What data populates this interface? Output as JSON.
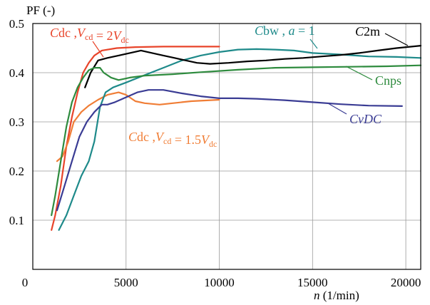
{
  "chart_data": {
    "type": "line",
    "ylabel": "PF (-)",
    "xlabel": {
      "var": "n",
      "unit": " (1/min)"
    },
    "xlim": [
      0,
      20800
    ],
    "ylim": [
      0,
      0.5
    ],
    "xticks": [
      0,
      5000,
      10000,
      15000,
      20000
    ],
    "xtick_labels": [
      "0",
      "5000",
      "10000",
      "15000",
      "20000"
    ],
    "yticks": [
      0.1,
      0.2,
      0.3,
      0.4,
      0.5
    ],
    "ytick_labels": [
      "0.1",
      "0.2",
      "0.3",
      "0.4",
      "0.5"
    ],
    "grid": true,
    "series": [
      {
        "key": "cdc2",
        "color": "#e8442a",
        "points": [
          [
            1000,
            0.08
          ],
          [
            1200,
            0.11
          ],
          [
            1500,
            0.17
          ],
          [
            1800,
            0.25
          ],
          [
            2100,
            0.31
          ],
          [
            2400,
            0.36
          ],
          [
            2700,
            0.4
          ],
          [
            3000,
            0.42
          ],
          [
            3300,
            0.435
          ],
          [
            3700,
            0.445
          ],
          [
            4500,
            0.45
          ],
          [
            5500,
            0.452
          ],
          [
            7000,
            0.453
          ],
          [
            8500,
            0.453
          ],
          [
            10000,
            0.453
          ]
        ]
      },
      {
        "key": "cdc15",
        "color": "#f07d35",
        "points": [
          [
            1300,
            0.22
          ],
          [
            1600,
            0.23
          ],
          [
            1900,
            0.26
          ],
          [
            2200,
            0.3
          ],
          [
            2600,
            0.32
          ],
          [
            3000,
            0.333
          ],
          [
            3500,
            0.345
          ],
          [
            4000,
            0.355
          ],
          [
            4600,
            0.36
          ],
          [
            5000,
            0.355
          ],
          [
            5500,
            0.342
          ],
          [
            6000,
            0.338
          ],
          [
            6800,
            0.335
          ],
          [
            7500,
            0.338
          ],
          [
            8500,
            0.342
          ],
          [
            10000,
            0.345
          ]
        ]
      },
      {
        "key": "cbw",
        "color": "#1e8a8a",
        "points": [
          [
            1400,
            0.08
          ],
          [
            1800,
            0.11
          ],
          [
            2200,
            0.15
          ],
          [
            2600,
            0.19
          ],
          [
            3000,
            0.22
          ],
          [
            3300,
            0.26
          ],
          [
            3600,
            0.33
          ],
          [
            3900,
            0.36
          ],
          [
            4300,
            0.37
          ],
          [
            5000,
            0.38
          ],
          [
            6000,
            0.395
          ],
          [
            7000,
            0.41
          ],
          [
            8000,
            0.425
          ],
          [
            9000,
            0.435
          ],
          [
            10000,
            0.442
          ],
          [
            11000,
            0.447
          ],
          [
            12000,
            0.448
          ],
          [
            13000,
            0.447
          ],
          [
            14000,
            0.445
          ],
          [
            15000,
            0.44
          ],
          [
            16500,
            0.437
          ],
          [
            18000,
            0.433
          ],
          [
            19500,
            0.432
          ],
          [
            20800,
            0.43
          ]
        ]
      },
      {
        "key": "c2m",
        "color": "#000000",
        "points": [
          [
            2800,
            0.37
          ],
          [
            3100,
            0.4
          ],
          [
            3500,
            0.425
          ],
          [
            4000,
            0.43
          ],
          [
            4600,
            0.435
          ],
          [
            5200,
            0.44
          ],
          [
            5800,
            0.445
          ],
          [
            6400,
            0.44
          ],
          [
            7000,
            0.435
          ],
          [
            7600,
            0.43
          ],
          [
            8200,
            0.425
          ],
          [
            8800,
            0.42
          ],
          [
            9500,
            0.418
          ],
          [
            10500,
            0.42
          ],
          [
            11500,
            0.423
          ],
          [
            12500,
            0.425
          ],
          [
            13500,
            0.428
          ],
          [
            14500,
            0.43
          ],
          [
            15500,
            0.433
          ],
          [
            16500,
            0.436
          ],
          [
            17500,
            0.44
          ],
          [
            18500,
            0.445
          ],
          [
            19500,
            0.45
          ],
          [
            20800,
            0.455
          ]
        ]
      },
      {
        "key": "cnps",
        "color": "#2e8b3e",
        "points": [
          [
            1000,
            0.11
          ],
          [
            1200,
            0.15
          ],
          [
            1500,
            0.22
          ],
          [
            1800,
            0.29
          ],
          [
            2100,
            0.34
          ],
          [
            2400,
            0.37
          ],
          [
            2700,
            0.39
          ],
          [
            3000,
            0.405
          ],
          [
            3300,
            0.41
          ],
          [
            3600,
            0.41
          ],
          [
            3800,
            0.4
          ],
          [
            4200,
            0.39
          ],
          [
            4600,
            0.385
          ],
          [
            5200,
            0.39
          ],
          [
            6000,
            0.394
          ],
          [
            7500,
            0.397
          ],
          [
            9000,
            0.401
          ],
          [
            11000,
            0.406
          ],
          [
            13000,
            0.41
          ],
          [
            15000,
            0.411
          ],
          [
            17000,
            0.412
          ],
          [
            19000,
            0.413
          ],
          [
            20800,
            0.415
          ]
        ]
      },
      {
        "key": "cvdc",
        "color": "#3a3c94",
        "points": [
          [
            1300,
            0.12
          ],
          [
            1700,
            0.17
          ],
          [
            2100,
            0.22
          ],
          [
            2500,
            0.27
          ],
          [
            2900,
            0.3
          ],
          [
            3300,
            0.32
          ],
          [
            3700,
            0.335
          ],
          [
            4000,
            0.335
          ],
          [
            4400,
            0.34
          ],
          [
            5000,
            0.35
          ],
          [
            5600,
            0.36
          ],
          [
            6200,
            0.365
          ],
          [
            7000,
            0.365
          ],
          [
            8000,
            0.358
          ],
          [
            9000,
            0.352
          ],
          [
            10000,
            0.348
          ],
          [
            11000,
            0.348
          ],
          [
            12000,
            0.347
          ],
          [
            13500,
            0.344
          ],
          [
            15000,
            0.34
          ],
          [
            16500,
            0.336
          ],
          [
            18000,
            0.333
          ],
          [
            19800,
            0.332
          ]
        ]
      }
    ],
    "annotations": [
      {
        "key": "cdc2",
        "parts": [
          {
            "t": "C",
            "s": "it"
          },
          {
            "t": "dc ,",
            "s": ""
          },
          {
            "t": "V",
            "s": "it"
          },
          {
            "t": "cd",
            "s": "sub"
          },
          {
            "t": " = 2",
            "s": ""
          },
          {
            "t": "V",
            "s": "it"
          },
          {
            "t": "dc",
            "s": "sub"
          }
        ]
      },
      {
        "key": "cdc15",
        "parts": [
          {
            "t": "C",
            "s": "it"
          },
          {
            "t": "dc ,",
            "s": ""
          },
          {
            "t": "V",
            "s": "it"
          },
          {
            "t": "cd",
            "s": "sub"
          },
          {
            "t": " = 1.5",
            "s": ""
          },
          {
            "t": "V",
            "s": "it"
          },
          {
            "t": "dc",
            "s": "sub"
          }
        ]
      },
      {
        "key": "cbw",
        "parts": [
          {
            "t": "C",
            "s": "it"
          },
          {
            "t": "bw , ",
            "s": ""
          },
          {
            "t": "a",
            "s": "it"
          },
          {
            "t": " = 1",
            "s": ""
          }
        ]
      },
      {
        "key": "c2m",
        "parts": [
          {
            "t": "C",
            "s": "it"
          },
          {
            "t": "2m",
            "s": ""
          }
        ]
      },
      {
        "key": "cnps",
        "parts": [
          {
            "t": "Cnps",
            "s": ""
          }
        ]
      },
      {
        "key": "cvdc",
        "parts": [
          {
            "t": "CvDC",
            "s": "it"
          }
        ]
      }
    ]
  }
}
